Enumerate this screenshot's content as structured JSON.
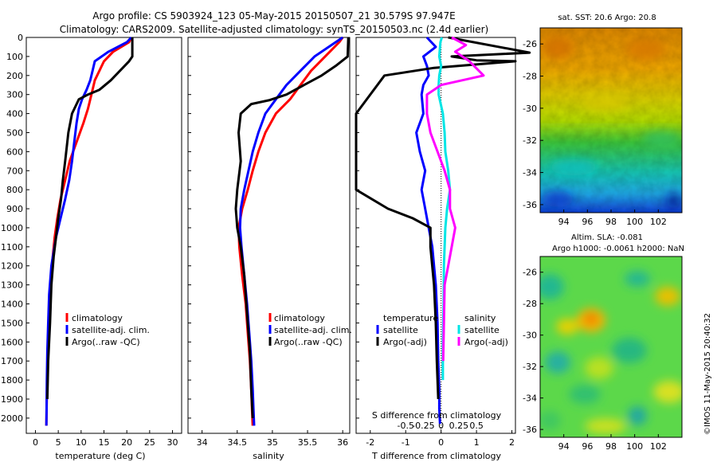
{
  "header": {
    "line1": "Argo profile: CS 5903924_123 05-May-2015 20150507_21 30.579S 97.947E",
    "line2": "Climatology: CARS2009. Satellite-adjusted climatology: synTS_20150503.nc (2.4d earlier)"
  },
  "chart_data": [
    {
      "type": "line",
      "xlabel": "temperature (deg C)",
      "xlim": [
        -2,
        32
      ],
      "xticks": [
        "0",
        "5",
        "10",
        "15",
        "20",
        "25",
        "30"
      ],
      "ylim": [
        0,
        2080
      ],
      "yticks": [
        "0",
        "100",
        "200",
        "300",
        "400",
        "500",
        "600",
        "700",
        "800",
        "900",
        "1000",
        "1100",
        "1200",
        "1300",
        "1400",
        "1500",
        "1600",
        "1700",
        "1800",
        "1900",
        "2000"
      ],
      "legend": [
        "climatology",
        "satellite-adj. clim.",
        "Argo(..raw -QC)"
      ],
      "series": [
        {
          "name": "climatology",
          "color": "#ff0000",
          "x": [
            21,
            20.5,
            17,
            15,
            14,
            13,
            12.5,
            12,
            11.5,
            10.5,
            9,
            7.5,
            6.5,
            5.5,
            4.8,
            4.2,
            3.6,
            3.2,
            2.9,
            2.7,
            2.55,
            2.45,
            2.4
          ],
          "y": [
            0,
            25,
            75,
            125,
            175,
            225,
            275,
            325,
            375,
            450,
            550,
            650,
            750,
            850,
            950,
            1050,
            1200,
            1350,
            1500,
            1650,
            1800,
            1950,
            2040
          ]
        },
        {
          "name": "satellite-adj. clim.",
          "color": "#0000ff",
          "x": [
            21,
            20,
            16,
            13,
            12.5,
            12,
            11.2,
            10.2,
            9.5,
            9,
            8.5,
            8,
            7.4,
            6.5,
            5.5,
            4.5,
            3.5,
            3,
            2.8,
            2.6,
            2.5,
            2.45,
            2.4
          ],
          "y": [
            0,
            25,
            75,
            125,
            175,
            225,
            275,
            325,
            375,
            450,
            550,
            650,
            750,
            850,
            950,
            1050,
            1200,
            1350,
            1500,
            1650,
            1800,
            1950,
            2040
          ]
        },
        {
          "name": "Argo(..raw -QC)",
          "color": "#000000",
          "x": [
            21.2,
            21.2,
            20.5,
            18.5,
            16.5,
            14,
            11.5,
            9.5,
            8,
            7.2,
            6.5,
            6,
            5.6,
            5,
            4.5,
            4,
            3.5,
            3.2,
            2.8,
            2.6
          ],
          "y": [
            0,
            100,
            125,
            175,
            225,
            275,
            300,
            325,
            400,
            500,
            650,
            750,
            850,
            950,
            1050,
            1150,
            1300,
            1500,
            1700,
            1900
          ]
        }
      ]
    },
    {
      "type": "line",
      "xlabel": "salinity",
      "xlim": [
        33.8,
        36.1
      ],
      "xticks": [
        "34",
        "34.5",
        "35",
        "35.5",
        "36"
      ],
      "ylim": [
        0,
        2080
      ],
      "legend": [
        "climatology",
        "satellite-adj. clim.",
        "Argo(..raw -QC)"
      ],
      "series": [
        {
          "name": "climatology",
          "color": "#ff0000",
          "x": [
            36.0,
            35.95,
            35.75,
            35.55,
            35.4,
            35.25,
            35.05,
            34.9,
            34.8,
            34.72,
            34.65,
            34.57,
            34.52,
            34.53,
            34.57,
            34.62,
            34.65,
            34.68,
            34.7,
            34.71,
            34.72
          ],
          "y": [
            0,
            25,
            100,
            175,
            250,
            325,
            400,
            500,
            600,
            700,
            800,
            900,
            1000,
            1100,
            1250,
            1400,
            1550,
            1700,
            1850,
            1950,
            2040
          ]
        },
        {
          "name": "satellite-adj. clim.",
          "color": "#0000ff",
          "x": [
            36.0,
            35.9,
            35.6,
            35.4,
            35.2,
            35.05,
            34.9,
            34.8,
            34.72,
            34.66,
            34.6,
            34.55,
            34.54,
            34.56,
            34.6,
            34.64,
            34.67,
            34.7,
            34.72,
            34.73,
            34.74
          ],
          "y": [
            0,
            25,
            100,
            175,
            250,
            325,
            400,
            500,
            600,
            700,
            800,
            900,
            1000,
            1100,
            1250,
            1400,
            1550,
            1700,
            1850,
            1950,
            2040
          ]
        },
        {
          "name": "Argo(..raw -QC)",
          "color": "#000000",
          "x": [
            36.08,
            36.07,
            35.9,
            35.7,
            35.45,
            35.2,
            34.95,
            34.7,
            34.55,
            34.52,
            34.55,
            34.5,
            34.48,
            34.5,
            34.55,
            34.6,
            34.64,
            34.68,
            34.7,
            34.72
          ],
          "y": [
            0,
            100,
            150,
            200,
            250,
            300,
            330,
            350,
            400,
            500,
            650,
            800,
            900,
            1000,
            1100,
            1250,
            1450,
            1650,
            1850,
            2000
          ]
        }
      ]
    },
    {
      "type": "line",
      "xlabel": "T difference from climatology",
      "xlabel_top": "S difference from climatology",
      "xlim": [
        -2.4,
        2.1
      ],
      "xticks": [
        "-2",
        "-1",
        "0",
        "1",
        "2"
      ],
      "xticks_top": [
        "-0.5",
        "-0.25",
        "0",
        "0.25",
        "0.5"
      ],
      "ylim": [
        0,
        2080
      ],
      "legend_headers": [
        "temperature",
        "salinity"
      ],
      "legend": [
        "satellite",
        "Argo(-adj)",
        "satellite",
        "Argo(-adj)"
      ],
      "series": [
        {
          "name": "temperature satellite",
          "color": "#0000ff",
          "x": [
            -0.4,
            -0.15,
            -0.5,
            -0.4,
            -0.35,
            -0.5,
            -0.55,
            -0.5,
            -0.7,
            -0.6,
            -0.45,
            -0.55,
            -0.45,
            -0.35,
            -0.25,
            -0.2,
            -0.15,
            -0.1,
            -0.08,
            -0.05,
            -0.05,
            -0.03
          ],
          "y": [
            0,
            50,
            100,
            150,
            200,
            250,
            300,
            400,
            500,
            600,
            700,
            800,
            900,
            1000,
            1100,
            1200,
            1300,
            1500,
            1700,
            1850,
            1950,
            2030
          ]
        },
        {
          "name": "temperature Argo(-adj)",
          "color": "#000000",
          "x": [
            0.2,
            2.5,
            0.3,
            1.0,
            2.1,
            -0.2,
            -1.6,
            -2.4,
            -2.4,
            -2.4,
            -2.4,
            -1.5,
            -0.8,
            -0.3,
            -0.3,
            -0.2,
            -0.15,
            -0.12,
            -0.08
          ],
          "y": [
            0,
            80,
            100,
            120,
            125,
            160,
            200,
            400,
            600,
            700,
            800,
            900,
            950,
            1000,
            1100,
            1300,
            1500,
            1700,
            1900
          ]
        },
        {
          "name": "salinity satellite",
          "color": "#00e5e5",
          "x": [
            0.02,
            -0.02,
            -0.05,
            0.0,
            -0.05,
            -0.07,
            -0.07,
            0.05,
            0.1,
            0.12,
            0.2,
            0.25,
            0.17,
            0.12,
            0.1,
            0.08,
            0.07,
            0.05,
            0.05
          ],
          "y": [
            0,
            25,
            100,
            150,
            200,
            250,
            300,
            400,
            500,
            600,
            700,
            800,
            900,
            1000,
            1100,
            1200,
            1400,
            1600,
            1800
          ]
        },
        {
          "name": "salinity Argo(-adj)",
          "color": "#ff00ff",
          "x": [
            0.3,
            0.7,
            0.4,
            0.8,
            1.2,
            0.0,
            -0.4,
            -0.4,
            -0.3,
            -0.1,
            0.1,
            0.25,
            0.25,
            0.4,
            0.3,
            0.2,
            0.1,
            0.08,
            0.06
          ],
          "y": [
            0,
            40,
            75,
            125,
            200,
            250,
            300,
            400,
            500,
            600,
            700,
            800,
            900,
            1000,
            1100,
            1200,
            1300,
            1500,
            1700
          ]
        }
      ]
    },
    {
      "type": "heatmap",
      "title": "sat. SST: 20.6 Argo: 20.8",
      "xlim": [
        92,
        104
      ],
      "ylim": [
        -36.5,
        -25
      ],
      "xticks": [
        "94",
        "96",
        "98",
        "100",
        "102"
      ],
      "yticks": [
        "-26",
        "-28",
        "-30",
        "-32",
        "-34",
        "-36"
      ],
      "colormap": "jet"
    },
    {
      "type": "heatmap",
      "title": "Altim. SLA: -0.081",
      "subtitle": "Argo h1000: -0.0061 h2000: NaN",
      "xlim": [
        92,
        104
      ],
      "ylim": [
        -36.5,
        -25
      ],
      "xticks": [
        "94",
        "96",
        "98",
        "100",
        "102"
      ],
      "yticks": [
        "-26",
        "-28",
        "-30",
        "-32",
        "-34",
        "-36"
      ],
      "colormap": "jet"
    }
  ],
  "side_text": "©IMOS 11-May-2015 20:40:32"
}
